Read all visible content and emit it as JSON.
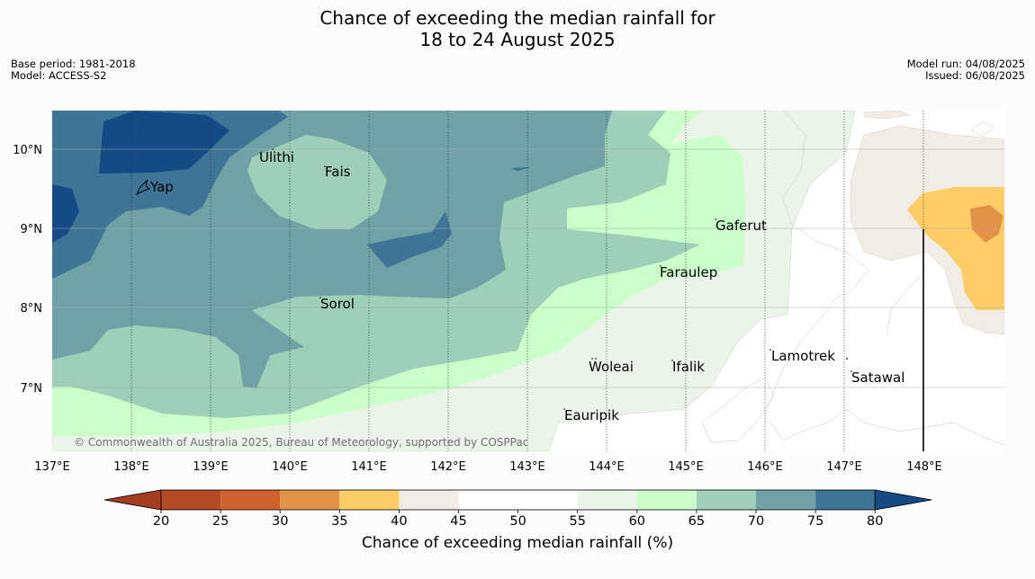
{
  "title": {
    "line1": "Chance of exceeding the median rainfall for",
    "line2": "18 to 24 August 2025"
  },
  "meta_left": {
    "base_period": "Base period: 1981-2018",
    "model": "Model: ACCESS-S2"
  },
  "meta_right": {
    "model_run": "Model run: 04/08/2025",
    "issued": "Issued: 06/08/2025"
  },
  "map": {
    "lon_ticks": [
      "137°E",
      "138°E",
      "139°E",
      "140°E",
      "141°E",
      "142°E",
      "143°E",
      "144°E",
      "145°E",
      "146°E",
      "147°E",
      "148°E"
    ],
    "lat_ticks": [
      "10°N",
      "9°N",
      "8°N",
      "7°N"
    ],
    "islands": [
      {
        "name": "Yap"
      },
      {
        "name": "Ulithi"
      },
      {
        "name": "Fais"
      },
      {
        "name": "Gaferut"
      },
      {
        "name": "Faraulep"
      },
      {
        "name": "Sorol"
      },
      {
        "name": "Woleai"
      },
      {
        "name": "Ifalik"
      },
      {
        "name": "Lamotrek"
      },
      {
        "name": "Satawal"
      },
      {
        "name": "Eauripik"
      }
    ],
    "copyright": "© Commonwealth of Australia 2025, Bureau of Meteorology, supported by COSPPac"
  },
  "colorbar": {
    "title": "Chance of exceeding median rainfall (%)",
    "ticks": [
      "20",
      "25",
      "30",
      "35",
      "40",
      "45",
      "50",
      "55",
      "60",
      "65",
      "70",
      "75",
      "80"
    ],
    "colors": {
      "under": "#a43c1f",
      "c20_25": "#b54a27",
      "c25_30": "#d0622f",
      "c30_35": "#e39146",
      "c35_40": "#fecd68",
      "c40_45": "#f2ece6",
      "c45_50": "#ffffff",
      "c50_55": "#ffffff",
      "c55_60": "#ebf4e9",
      "c60_65": "#caffc9",
      "c65_70": "#9ecfb9",
      "c70_75": "#6ea2a6",
      "c75_80": "#3e7496",
      "over": "#144b87"
    }
  }
}
